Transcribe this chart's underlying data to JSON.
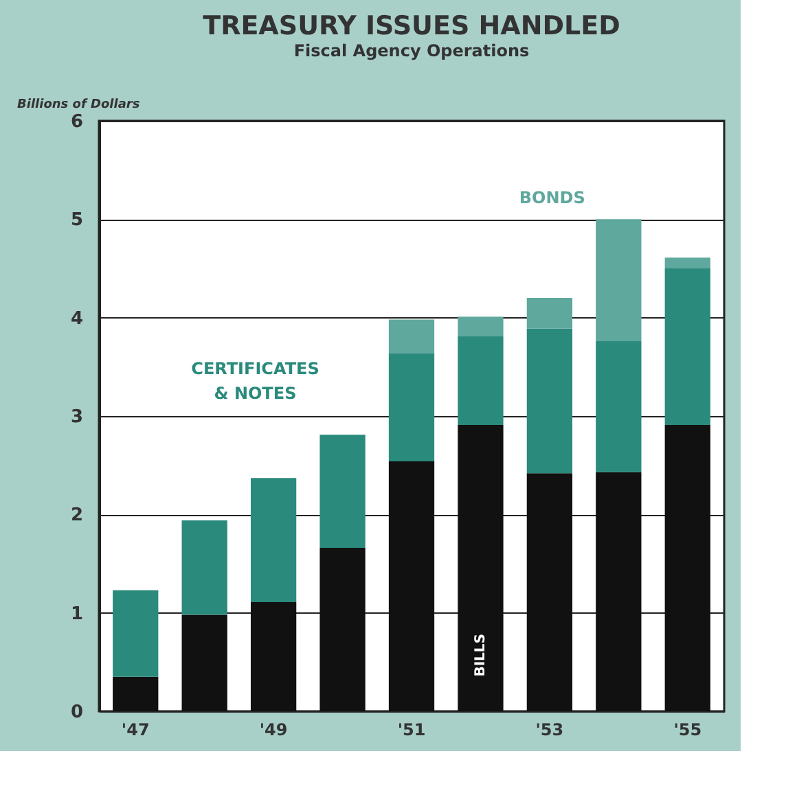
{
  "chart_data": {
    "type": "bar",
    "title": "TREASURY ISSUES HANDLED",
    "subtitle": "Fiscal Agency Operations",
    "ylabel": "Billions of Dollars",
    "categories": [
      "'47",
      null,
      "'49",
      null,
      "'51",
      null,
      "'53",
      null,
      "'55"
    ],
    "stacked": true,
    "series": [
      {
        "name": "BILLS",
        "color": "#111111",
        "values": [
          0.35,
          0.98,
          1.11,
          1.66,
          2.54,
          2.91,
          2.42,
          2.43,
          2.91
        ]
      },
      {
        "name": "CERTIFICATES & NOTES",
        "color": "#2a8a7c",
        "values": [
          0.88,
          0.96,
          1.26,
          1.15,
          1.1,
          0.9,
          1.47,
          1.33,
          1.59
        ]
      },
      {
        "name": "BONDS",
        "color": "#5fa89d",
        "values": [
          null,
          null,
          null,
          null,
          0.34,
          0.2,
          0.31,
          1.24,
          0.11
        ]
      }
    ],
    "ylim": [
      0,
      6
    ],
    "yticks": [
      0,
      1,
      2,
      3,
      4,
      5,
      6
    ],
    "grid": "y",
    "legend": false
  }
}
